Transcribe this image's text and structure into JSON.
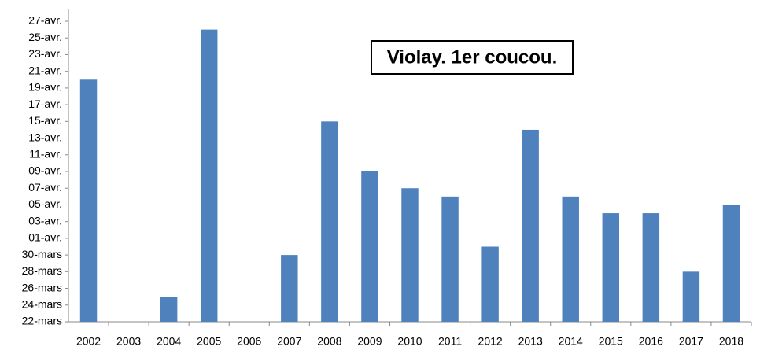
{
  "chart_data": {
    "type": "bar",
    "title": "Violay. 1er coucou.",
    "categories": [
      "2002",
      "2003",
      "2004",
      "2005",
      "2006",
      "2007",
      "2008",
      "2009",
      "2010",
      "2011",
      "2012",
      "2013",
      "2014",
      "2015",
      "2016",
      "2017",
      "2018"
    ],
    "values": [
      51,
      null,
      25,
      57,
      null,
      30,
      46,
      40,
      38,
      37,
      31,
      45,
      37,
      35,
      35,
      28,
      36
    ],
    "color": "#4f81bd",
    "ylim": [
      22,
      58
    ],
    "yticks": [
      {
        "value": 22,
        "label": "22-mars"
      },
      {
        "value": 24,
        "label": "24-mars"
      },
      {
        "value": 26,
        "label": "26-mars"
      },
      {
        "value": 28,
        "label": "28-mars"
      },
      {
        "value": 30,
        "label": "30-mars"
      },
      {
        "value": 32,
        "label": "01-avr."
      },
      {
        "value": 34,
        "label": "03-avr."
      },
      {
        "value": 36,
        "label": "05-avr."
      },
      {
        "value": 38,
        "label": "07-avr."
      },
      {
        "value": 40,
        "label": "09-avr."
      },
      {
        "value": 42,
        "label": "11-avr."
      },
      {
        "value": 44,
        "label": "13-avr."
      },
      {
        "value": 46,
        "label": "15-avr."
      },
      {
        "value": 48,
        "label": "17-avr."
      },
      {
        "value": 50,
        "label": "19-avr."
      },
      {
        "value": 52,
        "label": "21-avr."
      },
      {
        "value": 54,
        "label": "23-avr."
      },
      {
        "value": 56,
        "label": "25-avr."
      },
      {
        "value": 58,
        "label": "27-avr."
      }
    ],
    "grid": false
  }
}
